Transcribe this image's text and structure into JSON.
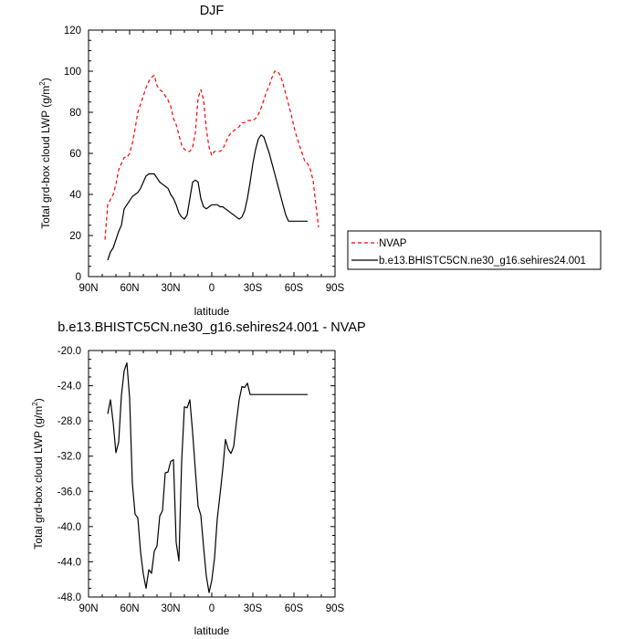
{
  "chart_data": [
    {
      "type": "line",
      "title": "DJF",
      "xlabel": "latitude",
      "ylabel": "Total grd-box cloud LWP (g/m²)",
      "ylabel_main": "Total grd-box cloud LWP (g/m",
      "ylabel_sup": "2",
      "ylabel_end": ")",
      "xlim": [
        90,
        -90
      ],
      "ylim": [
        0,
        120
      ],
      "x_ticks": [
        90,
        60,
        30,
        0,
        -30,
        -60,
        -90
      ],
      "x_tick_labels": [
        "90N",
        "60N",
        "30N",
        "0",
        "30S",
        "60S",
        "90S"
      ],
      "y_ticks": [
        0,
        20,
        40,
        60,
        80,
        100,
        120
      ],
      "y_tick_labels": [
        "0",
        "20",
        "40",
        "60",
        "80",
        "100",
        "120"
      ],
      "legend": {
        "placement": "right",
        "entries": [
          "NVAP",
          "b.e13.BHISTC5CN.ne30_g16.sehires24.001"
        ]
      },
      "series": [
        {
          "name": "NVAP",
          "color": "#ff0000",
          "dash": "dashed",
          "x": [
            78,
            76,
            72,
            70,
            68,
            66,
            64,
            62,
            60,
            58,
            56,
            54,
            52,
            50,
            48,
            46,
            44,
            42,
            40,
            38,
            36,
            34,
            32,
            30,
            28,
            26,
            24,
            22,
            20,
            18,
            16,
            14,
            12,
            10,
            8,
            6,
            4,
            2,
            0,
            -2,
            -4,
            -6,
            -8,
            -10,
            -12,
            -14,
            -16,
            -18,
            -20,
            -22,
            -24,
            -26,
            -28,
            -30,
            -32,
            -34,
            -36,
            -38,
            -40,
            -42,
            -44,
            -46,
            -48,
            -50,
            -52,
            -54,
            -56,
            -58,
            -60,
            -62,
            -64,
            -66,
            -68,
            -70,
            -72,
            -74,
            -76,
            -78
          ],
          "y": [
            18,
            35,
            40,
            45,
            52,
            55,
            58,
            58,
            60,
            65,
            72,
            80,
            84,
            88,
            92,
            95,
            97,
            98,
            93,
            91,
            90,
            88,
            86,
            83,
            77,
            74,
            69,
            64,
            62,
            61,
            61,
            63,
            70,
            87,
            91,
            86,
            72,
            63,
            59,
            61,
            61,
            61,
            62,
            65,
            68,
            70,
            71,
            72,
            73,
            75,
            75,
            76,
            76,
            76,
            77,
            79,
            82,
            86,
            90,
            93,
            97,
            100,
            100,
            98,
            94,
            89,
            84,
            79,
            73,
            68,
            64,
            60,
            56,
            55,
            52,
            47,
            35,
            24
          ]
        },
        {
          "name": "b.e13.BHISTC5CN.ne30_g16.sehires24.001",
          "color": "#000000",
          "dash": "solid",
          "x": [
            76,
            74,
            72,
            70,
            68,
            66,
            64,
            62,
            60,
            58,
            56,
            54,
            52,
            50,
            48,
            46,
            44,
            42,
            40,
            38,
            36,
            34,
            32,
            30,
            28,
            26,
            24,
            22,
            20,
            18,
            16,
            14,
            12,
            10,
            8,
            6,
            4,
            2,
            0,
            -2,
            -4,
            -6,
            -8,
            -10,
            -12,
            -14,
            -16,
            -18,
            -20,
            -22,
            -24,
            -26,
            -28,
            -30,
            -32,
            -34,
            -36,
            -38,
            -40,
            -42,
            -44,
            -46,
            -48,
            -50,
            -52,
            -54,
            -56,
            -58,
            -60,
            -62,
            -64,
            -66,
            -68,
            -70
          ],
          "y": [
            8,
            12,
            14,
            18,
            22,
            25,
            33,
            35,
            37,
            39,
            40,
            41,
            43,
            46,
            49,
            50,
            50,
            50,
            48,
            46,
            45,
            44,
            43,
            40,
            38,
            35,
            31,
            29,
            28,
            30,
            38,
            46,
            47,
            46,
            38,
            34,
            33,
            34,
            35,
            35,
            35,
            34,
            34,
            33,
            32,
            31,
            30,
            29,
            28,
            29,
            32,
            38,
            46,
            55,
            62,
            67,
            69,
            68,
            64,
            60,
            55,
            50,
            45,
            40,
            35,
            30,
            27,
            27,
            27,
            27,
            27,
            27,
            27,
            27
          ]
        }
      ]
    },
    {
      "type": "line",
      "title": "b.e13.BHISTC5CN.ne30_g16.sehires24.001 - NVAP",
      "xlabel": "latitude",
      "ylabel": "Total grd-box cloud LWP (g/m²)",
      "ylabel_main": "Total grd-box cloud LWP (g/m",
      "ylabel_sup": "2",
      "ylabel_end": ")",
      "xlim": [
        90,
        -90
      ],
      "ylim": [
        -48,
        -20
      ],
      "x_ticks": [
        90,
        60,
        30,
        0,
        -30,
        -60,
        -90
      ],
      "x_tick_labels": [
        "90N",
        "60N",
        "30N",
        "0",
        "30S",
        "60S",
        "90S"
      ],
      "y_ticks": [
        -48,
        -44,
        -40,
        -36,
        -32,
        -28,
        -24,
        -20
      ],
      "y_tick_labels": [
        "-48.0",
        "-44.0",
        "-40.0",
        "-36.0",
        "-32.0",
        "-28.0",
        "-24.0",
        "-20.0"
      ],
      "series": [
        {
          "color": "#000000",
          "dash": "solid",
          "x": [
            76,
            74,
            72,
            70,
            68,
            66,
            64,
            62,
            60,
            58,
            56,
            54,
            52,
            50,
            48,
            46,
            44,
            42,
            40,
            38,
            36,
            34,
            32,
            30,
            28,
            26,
            24,
            22,
            20,
            18,
            16,
            14,
            12,
            10,
            8,
            6,
            4,
            2,
            0,
            -2,
            -4,
            -6,
            -8,
            -10,
            -12,
            -14,
            -16,
            -18,
            -20,
            -22,
            -24,
            -26,
            -28,
            -30,
            -32,
            -34,
            -36,
            -38,
            -40,
            -42,
            -44,
            -46,
            -48,
            -50,
            -52,
            -54,
            -56,
            -58,
            -60,
            -62,
            -64,
            -66,
            -68,
            -70
          ],
          "y": [
            -27.2,
            -25.6,
            -28.2,
            -31.6,
            -30.4,
            -25.1,
            -22.3,
            -21.4,
            -25.4,
            -35.1,
            -38.6,
            -39.0,
            -42.9,
            -45.4,
            -47.0,
            -44.9,
            -45.3,
            -42.8,
            -42.2,
            -38.8,
            -38.2,
            -33.9,
            -33.8,
            -32.6,
            -32.4,
            -41.8,
            -43.9,
            -32.6,
            -26.4,
            -26.5,
            -25.6,
            -29.3,
            -33.6,
            -37.7,
            -38.7,
            -42.3,
            -45.6,
            -47.5,
            -46.1,
            -43.6,
            -39.1,
            -36.4,
            -33.5,
            -30.1,
            -31.2,
            -31.7,
            -30.9,
            -28.1,
            -25.6,
            -24.1,
            -24.2,
            -23.7,
            -25.0,
            -25.0,
            -25.0,
            -25.0,
            -25.0,
            -25.0,
            -25.0,
            -25.0,
            -25.0,
            -25.0,
            -25.0,
            -25.0,
            -25.0,
            -25.0,
            -25.0,
            -25.0,
            -25.0,
            -25.0,
            -25.0,
            -25.0,
            -25.0,
            -25.0
          ]
        }
      ]
    }
  ]
}
